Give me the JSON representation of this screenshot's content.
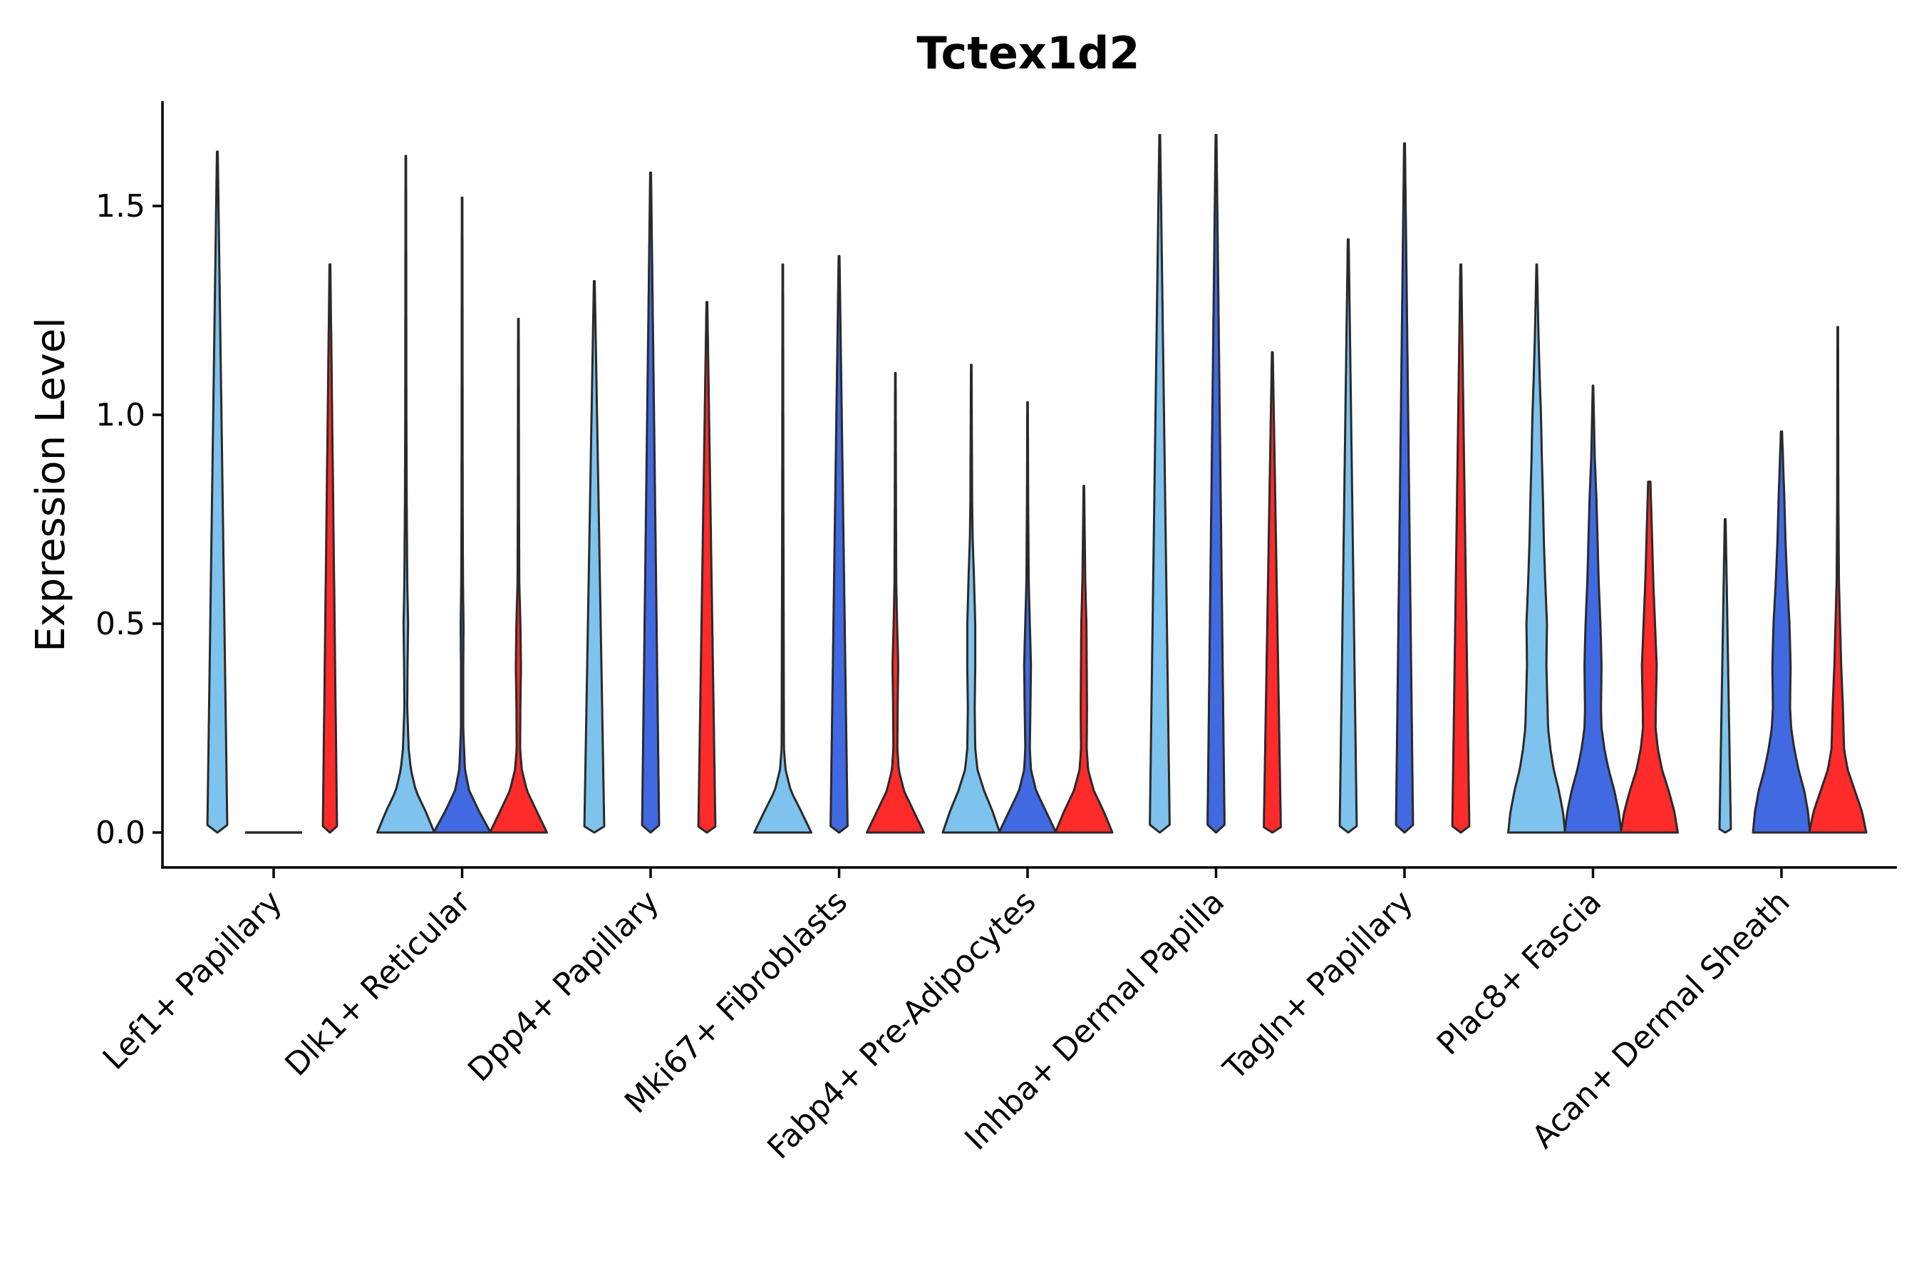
{
  "chart_data": {
    "type": "violin",
    "title": "Tctex1d2",
    "xlabel": "",
    "ylabel": "Expression Level",
    "ylim": [
      -0.1,
      1.75
    ],
    "yticks": [
      0.0,
      0.5,
      1.0,
      1.5
    ],
    "ytick_labels": [
      "0.0",
      "0.5",
      "1.0",
      "1.5"
    ],
    "grid": false,
    "legend": "none",
    "condition_colors": [
      "#7EC2EE",
      "#4169E1",
      "#FF2A2A"
    ],
    "categories": [
      "Lef1+ Papillary",
      "Dlk1+ Reticular",
      "Dpp4+ Papillary",
      "Mki67+ Fibroblasts",
      "Fabp4+ Pre-Adipocytes",
      "Inhba+ Dermal Papilla",
      "Tagln+ Papillary",
      "Plac8+ Fascia",
      "Acan+ Dermal Sheath"
    ],
    "groups": [
      [
        {
          "max": 1.63,
          "profile": [
            [
              0,
              0.002
            ],
            [
              0.006,
              0.35
            ],
            [
              1.63,
              0.015
            ]
          ]
        },
        {
          "max": 0.0,
          "profile": [
            [
              0,
              0.002
            ],
            [
              0.003,
              0.05
            ],
            [
              0.006,
              0.0
            ]
          ]
        },
        {
          "max": 1.36,
          "profile": [
            [
              0,
              0.002
            ],
            [
              0.006,
              0.25
            ],
            [
              1.36,
              0.015
            ]
          ]
        }
      ],
      [
        {
          "max": 1.62,
          "profile": [
            [
              0,
              1
            ],
            [
              0.05,
              0.7
            ],
            [
              0.1,
              0.35
            ],
            [
              0.15,
              0.18
            ],
            [
              0.2,
              0.1
            ],
            [
              0.3,
              0.05
            ],
            [
              0.4,
              0.06
            ],
            [
              0.5,
              0.08
            ],
            [
              0.6,
              0.05
            ],
            [
              0.8,
              0.03
            ],
            [
              1.0,
              0.02
            ],
            [
              1.62,
              0.01
            ]
          ]
        },
        {
          "max": 1.52,
          "profile": [
            [
              0,
              1
            ],
            [
              0.05,
              0.6
            ],
            [
              0.1,
              0.25
            ],
            [
              0.15,
              0.1
            ],
            [
              0.25,
              0.04
            ],
            [
              0.4,
              0.04
            ],
            [
              0.5,
              0.05
            ],
            [
              0.6,
              0.03
            ],
            [
              0.8,
              0.02
            ],
            [
              1.52,
              0.01
            ]
          ]
        },
        {
          "max": 1.23,
          "profile": [
            [
              0,
              1
            ],
            [
              0.05,
              0.65
            ],
            [
              0.1,
              0.3
            ],
            [
              0.15,
              0.12
            ],
            [
              0.2,
              0.06
            ],
            [
              0.3,
              0.07
            ],
            [
              0.4,
              0.09
            ],
            [
              0.5,
              0.07
            ],
            [
              0.6,
              0.03
            ],
            [
              0.8,
              0.02
            ],
            [
              1.23,
              0.01
            ]
          ]
        }
      ],
      [
        {
          "max": 1.32,
          "profile": [
            [
              0,
              0.002
            ],
            [
              0.006,
              0.35
            ],
            [
              1.32,
              0.015
            ]
          ]
        },
        {
          "max": 1.58,
          "profile": [
            [
              0,
              0.002
            ],
            [
              0.006,
              0.3
            ],
            [
              1.58,
              0.015
            ]
          ]
        },
        {
          "max": 1.27,
          "profile": [
            [
              0,
              0.002
            ],
            [
              0.006,
              0.3
            ],
            [
              1.27,
              0.015
            ]
          ]
        }
      ],
      [
        {
          "max": 1.36,
          "profile": [
            [
              0,
              1
            ],
            [
              0.05,
              0.65
            ],
            [
              0.1,
              0.28
            ],
            [
              0.15,
              0.1
            ],
            [
              0.2,
              0.04
            ],
            [
              0.5,
              0.03
            ],
            [
              0.8,
              0.02
            ],
            [
              1.36,
              0.01
            ]
          ]
        },
        {
          "max": 1.38,
          "profile": [
            [
              0,
              0.002
            ],
            [
              0.006,
              0.3
            ],
            [
              1.38,
              0.015
            ]
          ]
        },
        {
          "max": 1.1,
          "profile": [
            [
              0,
              1
            ],
            [
              0.05,
              0.65
            ],
            [
              0.1,
              0.3
            ],
            [
              0.15,
              0.12
            ],
            [
              0.2,
              0.07
            ],
            [
              0.3,
              0.08
            ],
            [
              0.4,
              0.1
            ],
            [
              0.5,
              0.06
            ],
            [
              0.6,
              0.03
            ],
            [
              0.8,
              0.02
            ],
            [
              1.1,
              0.01
            ]
          ]
        }
      ],
      [
        {
          "max": 1.12,
          "profile": [
            [
              0,
              1
            ],
            [
              0.05,
              0.75
            ],
            [
              0.1,
              0.45
            ],
            [
              0.15,
              0.22
            ],
            [
              0.2,
              0.14
            ],
            [
              0.3,
              0.12
            ],
            [
              0.4,
              0.14
            ],
            [
              0.5,
              0.14
            ],
            [
              0.6,
              0.1
            ],
            [
              0.7,
              0.05
            ],
            [
              0.8,
              0.03
            ],
            [
              1.12,
              0.01
            ]
          ]
        },
        {
          "max": 1.03,
          "profile": [
            [
              0,
              1
            ],
            [
              0.05,
              0.65
            ],
            [
              0.1,
              0.3
            ],
            [
              0.15,
              0.12
            ],
            [
              0.2,
              0.08
            ],
            [
              0.3,
              0.1
            ],
            [
              0.4,
              0.12
            ],
            [
              0.5,
              0.08
            ],
            [
              0.6,
              0.04
            ],
            [
              0.8,
              0.02
            ],
            [
              1.03,
              0.01
            ]
          ]
        },
        {
          "max": 0.83,
          "profile": [
            [
              0,
              1
            ],
            [
              0.05,
              0.7
            ],
            [
              0.1,
              0.35
            ],
            [
              0.15,
              0.15
            ],
            [
              0.2,
              0.1
            ],
            [
              0.3,
              0.11
            ],
            [
              0.4,
              0.1
            ],
            [
              0.5,
              0.09
            ],
            [
              0.6,
              0.05
            ],
            [
              0.83,
              0.01
            ]
          ]
        }
      ],
      [
        {
          "max": 1.67,
          "profile": [
            [
              0,
              0.002
            ],
            [
              0.006,
              0.35
            ],
            [
              1.67,
              0.015
            ]
          ]
        },
        {
          "max": 1.67,
          "profile": [
            [
              0,
              0.002
            ],
            [
              0.006,
              0.3
            ],
            [
              1.67,
              0.015
            ]
          ]
        },
        {
          "max": 1.15,
          "profile": [
            [
              0,
              0.002
            ],
            [
              0.006,
              0.3
            ],
            [
              1.15,
              0.015
            ]
          ]
        }
      ],
      [
        {
          "max": 1.42,
          "profile": [
            [
              0,
              0.002
            ],
            [
              0.006,
              0.3
            ],
            [
              1.42,
              0.015
            ]
          ]
        },
        {
          "max": 1.65,
          "profile": [
            [
              0,
              0.002
            ],
            [
              0.006,
              0.3
            ],
            [
              1.65,
              0.015
            ]
          ]
        },
        {
          "max": 1.36,
          "profile": [
            [
              0,
              0.002
            ],
            [
              0.006,
              0.3
            ],
            [
              1.36,
              0.015
            ]
          ]
        }
      ],
      [
        {
          "max": 1.36,
          "profile": [
            [
              0,
              1
            ],
            [
              0.05,
              0.92
            ],
            [
              0.1,
              0.78
            ],
            [
              0.15,
              0.6
            ],
            [
              0.2,
              0.48
            ],
            [
              0.25,
              0.4
            ],
            [
              0.3,
              0.38
            ],
            [
              0.4,
              0.34
            ],
            [
              0.5,
              0.36
            ],
            [
              0.6,
              0.3
            ],
            [
              0.7,
              0.25
            ],
            [
              0.8,
              0.22
            ],
            [
              0.9,
              0.18
            ],
            [
              1.0,
              0.15
            ],
            [
              1.1,
              0.1
            ],
            [
              1.2,
              0.06
            ],
            [
              1.36,
              0.01
            ]
          ]
        },
        {
          "max": 1.07,
          "profile": [
            [
              0,
              1
            ],
            [
              0.05,
              0.9
            ],
            [
              0.1,
              0.75
            ],
            [
              0.15,
              0.55
            ],
            [
              0.2,
              0.4
            ],
            [
              0.25,
              0.3
            ],
            [
              0.3,
              0.28
            ],
            [
              0.4,
              0.3
            ],
            [
              0.5,
              0.26
            ],
            [
              0.6,
              0.2
            ],
            [
              0.7,
              0.16
            ],
            [
              0.8,
              0.12
            ],
            [
              0.9,
              0.06
            ],
            [
              1.07,
              0.01
            ]
          ]
        },
        {
          "max": 0.84,
          "profile": [
            [
              0,
              1
            ],
            [
              0.05,
              0.88
            ],
            [
              0.1,
              0.68
            ],
            [
              0.15,
              0.45
            ],
            [
              0.2,
              0.3
            ],
            [
              0.25,
              0.22
            ],
            [
              0.3,
              0.23
            ],
            [
              0.4,
              0.26
            ],
            [
              0.5,
              0.2
            ],
            [
              0.6,
              0.14
            ],
            [
              0.7,
              0.1
            ],
            [
              0.84,
              0.04
            ]
          ]
        }
      ],
      [
        {
          "max": 0.75,
          "profile": [
            [
              0,
              0.003
            ],
            [
              0.006,
              0.2
            ],
            [
              0.75,
              0.015
            ]
          ]
        },
        {
          "max": 0.96,
          "profile": [
            [
              0,
              1
            ],
            [
              0.05,
              0.93
            ],
            [
              0.1,
              0.8
            ],
            [
              0.15,
              0.6
            ],
            [
              0.2,
              0.45
            ],
            [
              0.25,
              0.34
            ],
            [
              0.3,
              0.3
            ],
            [
              0.4,
              0.32
            ],
            [
              0.5,
              0.28
            ],
            [
              0.6,
              0.2
            ],
            [
              0.7,
              0.14
            ],
            [
              0.8,
              0.1
            ],
            [
              0.9,
              0.05
            ],
            [
              0.96,
              0.02
            ]
          ]
        },
        {
          "max": 1.21,
          "profile": [
            [
              0,
              1
            ],
            [
              0.05,
              0.85
            ],
            [
              0.1,
              0.6
            ],
            [
              0.15,
              0.35
            ],
            [
              0.2,
              0.22
            ],
            [
              0.3,
              0.18
            ],
            [
              0.4,
              0.12
            ],
            [
              0.5,
              0.08
            ],
            [
              0.6,
              0.04
            ],
            [
              0.8,
              0.02
            ],
            [
              1.21,
              0.01
            ]
          ]
        }
      ]
    ]
  }
}
